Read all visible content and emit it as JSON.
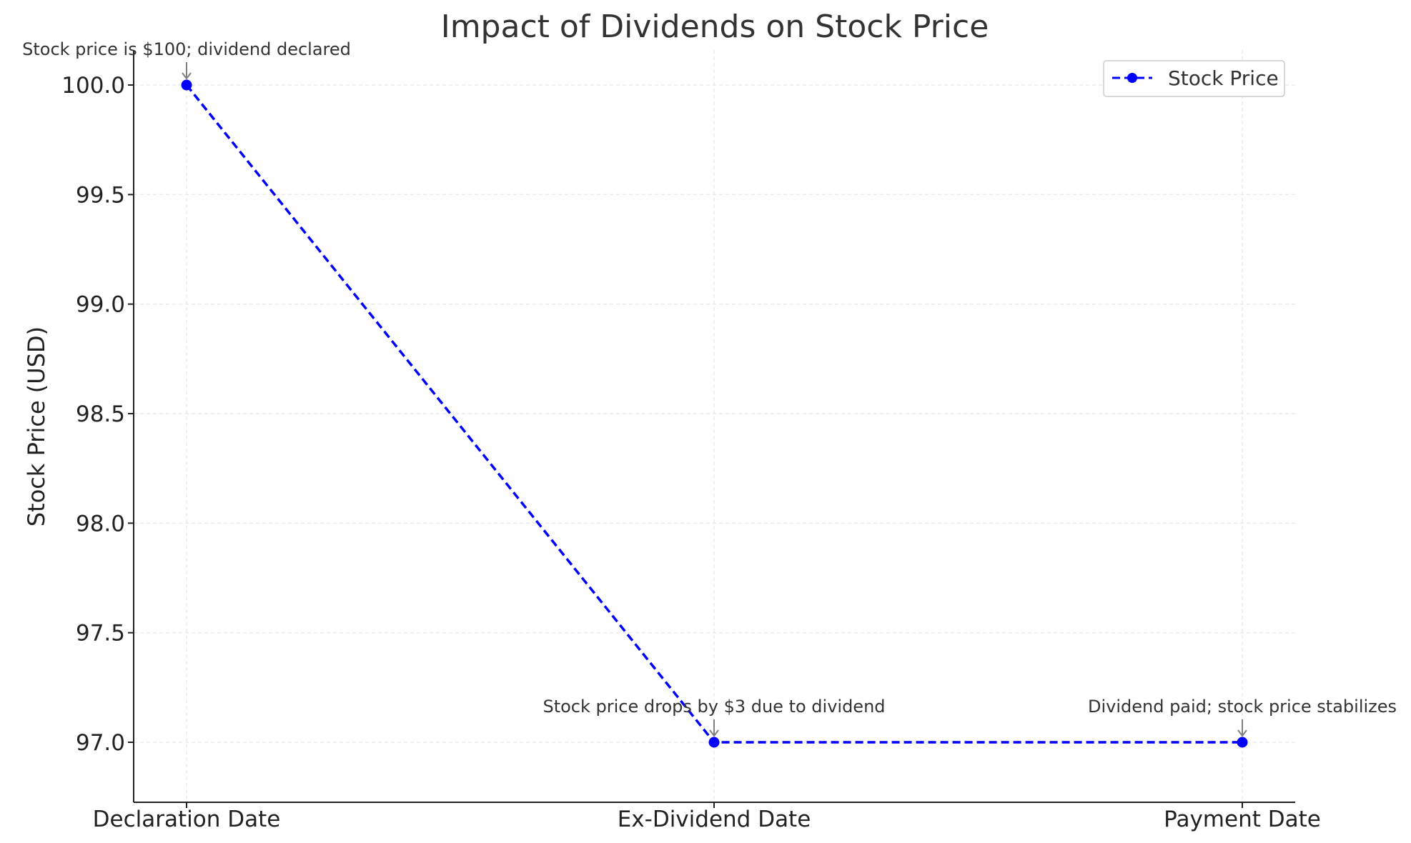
{
  "chart_data": {
    "type": "line",
    "title": "Impact of Dividends on Stock Price",
    "xlabel": "",
    "ylabel": "Stock Price (USD)",
    "categories": [
      "Declaration Date",
      "Ex-Dividend Date",
      "Payment Date"
    ],
    "series": [
      {
        "name": "Stock Price",
        "values": [
          100.0,
          97.0,
          97.0
        ],
        "color": "#0000ff",
        "line_style": "dashed",
        "marker": "circle"
      }
    ],
    "ylim": [
      96.85,
      100.15
    ],
    "yticks": [
      97.0,
      97.5,
      98.0,
      98.5,
      99.0,
      99.5,
      100.0
    ],
    "ytick_labels": [
      "97.0",
      "97.5",
      "98.0",
      "98.5",
      "99.0",
      "99.5",
      "100.0"
    ],
    "grid": true,
    "legend_position": "top-right",
    "annotations": [
      {
        "category": "Declaration Date",
        "value": 100.0,
        "text": "Stock price is $100; dividend declared"
      },
      {
        "category": "Ex-Dividend Date",
        "value": 97.0,
        "text": "Stock price drops by $3 due to dividend"
      },
      {
        "category": "Payment Date",
        "value": 97.0,
        "text": "Dividend paid; stock price stabilizes"
      }
    ],
    "colors": {
      "axis": "#222222",
      "grid": "#e6e6e6",
      "annotation_arrow": "#808080"
    }
  }
}
